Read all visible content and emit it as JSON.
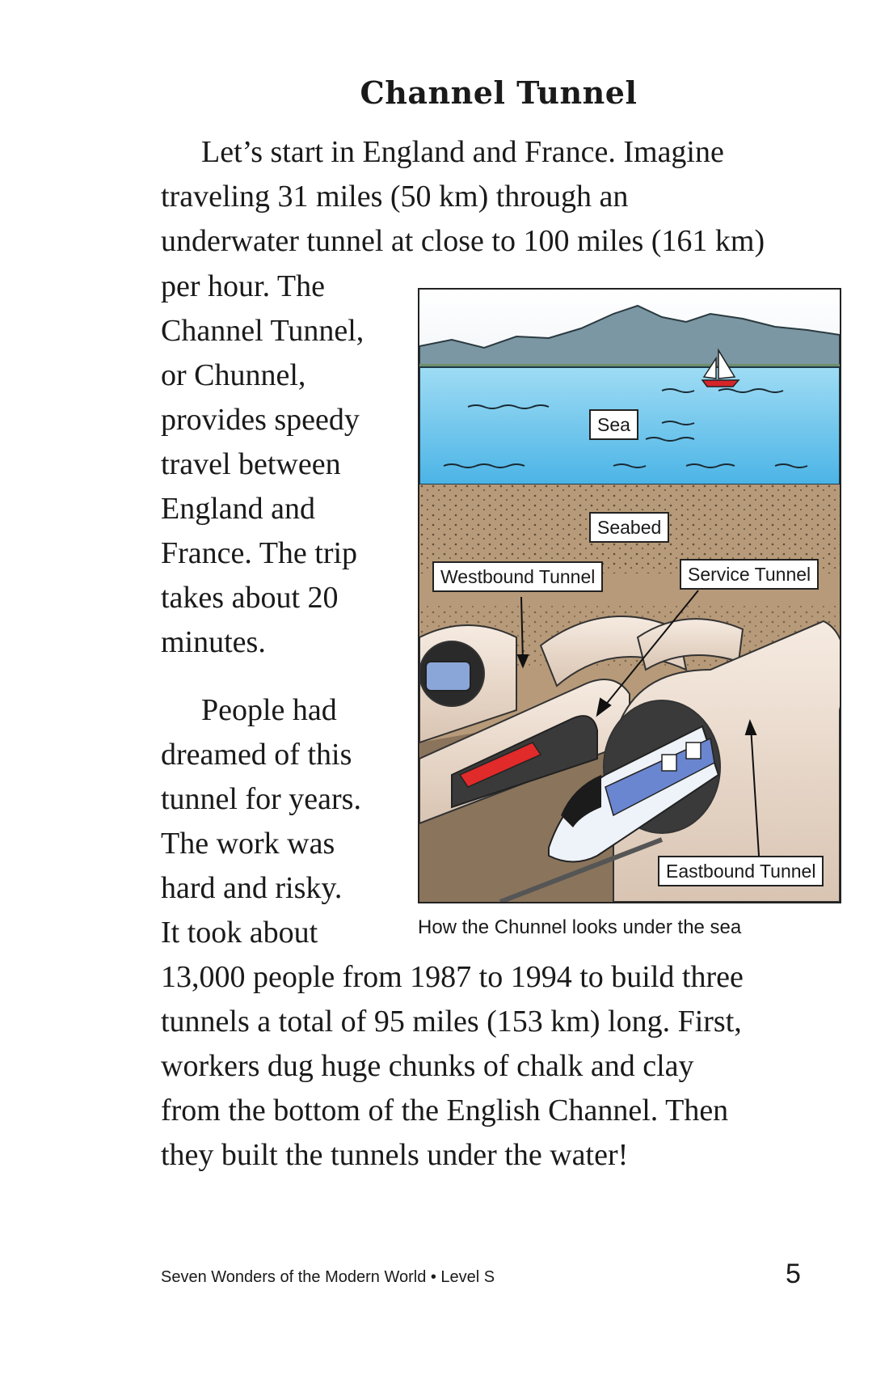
{
  "page": {
    "heading": "Channel Tunnel",
    "paragraph1": {
      "lines": [
        "Let’s start in England and France. Imagine",
        "traveling 31 miles (50 km) through an",
        "underwater tunnel at close to 100 miles (161 km)",
        "per hour. The",
        "Channel Tunnel,",
        "or Chunnel,",
        "provides speedy",
        "travel between",
        "England and",
        "France. The trip",
        "takes about 20",
        "minutes."
      ]
    },
    "paragraph2": {
      "lines": [
        "People had",
        "dreamed of this",
        "tunnel for years.",
        "The work was",
        "hard and risky.",
        "It took about",
        "13,000 people from 1987 to 1994 to build three",
        "tunnels a total of 95 miles (153 km) long. First,",
        "workers dug huge chunks of chalk and clay",
        "from the bottom of the English Channel. Then",
        "they built the tunnels under the water!"
      ]
    },
    "figure": {
      "labels": {
        "sea": "Sea",
        "seabed": "Seabed",
        "westbound": "Westbound Tunnel",
        "service": "Service Tunnel",
        "eastbound": "Eastbound Tunnel"
      },
      "caption": "How the Chunnel looks under the sea"
    },
    "footer": {
      "book_title": "Seven Wonders of the Modern World • Level S",
      "page_number": "5"
    }
  }
}
